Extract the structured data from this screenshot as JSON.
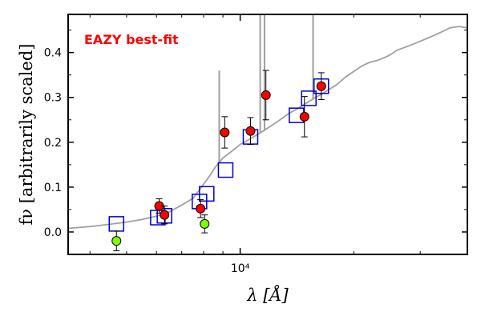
{
  "chart_data": {
    "type": "scatter",
    "title": "",
    "annotation": {
      "text": "EAZY best-fit",
      "color": "#ff0000",
      "position": "top-left"
    },
    "xlabel": "λ [Å]",
    "ylabel": "fν [arbitrarily scaled]",
    "xscale": "log",
    "xlim": [
      3500,
      40000
    ],
    "ylim": [
      -0.05,
      0.485
    ],
    "xticks": [
      {
        "value": 10000,
        "label": "10⁴"
      }
    ],
    "yticks": [
      {
        "value": 0.0,
        "label": "0.0"
      },
      {
        "value": 0.1,
        "label": "0.1"
      },
      {
        "value": 0.2,
        "label": "0.2"
      },
      {
        "value": 0.3,
        "label": "0.3"
      },
      {
        "value": 0.4,
        "label": "0.4"
      }
    ],
    "grid": false,
    "colors": {
      "model": "#a0a0a0",
      "observed": "#ff0000",
      "upper": "#7fff00",
      "model_box": "#0000cc"
    },
    "series": [
      {
        "kind": "line",
        "role": "model-spectrum",
        "x": [
          3500,
          4000,
          4500,
          5000,
          5500,
          6000,
          6500,
          7000,
          7500,
          7900,
          8300,
          8600,
          9000,
          9500,
          10000,
          10500,
          11000,
          11500,
          12000,
          12500,
          13000,
          13500,
          14000,
          14500,
          15000,
          15500,
          16000,
          16500,
          17000,
          18000,
          19000,
          20000,
          21000,
          22000,
          23000,
          24000,
          25000,
          26000,
          28000,
          30000,
          32000,
          34000,
          36000,
          38000,
          40000
        ],
        "y": [
          0.008,
          0.012,
          0.017,
          0.022,
          0.028,
          0.035,
          0.045,
          0.06,
          0.075,
          0.1,
          0.125,
          0.145,
          0.165,
          0.18,
          0.195,
          0.205,
          0.215,
          0.225,
          0.235,
          0.245,
          0.255,
          0.265,
          0.272,
          0.28,
          0.288,
          0.295,
          0.302,
          0.308,
          0.315,
          0.328,
          0.345,
          0.358,
          0.37,
          0.378,
          0.382,
          0.388,
          0.395,
          0.405,
          0.415,
          0.425,
          0.435,
          0.445,
          0.455,
          0.458,
          0.455
        ]
      },
      {
        "kind": "emission-lines",
        "role": "model-spectrum",
        "x": [
          8800,
          11300,
          11600,
          15600
        ],
        "ytop": [
          0.36,
          0.6,
          0.6,
          0.6
        ]
      },
      {
        "kind": "points",
        "role": "observed",
        "x": [
          6100,
          6300,
          7850,
          9100,
          10650,
          11700,
          14800,
          16400
        ],
        "y": [
          0.058,
          0.038,
          0.052,
          0.222,
          0.225,
          0.305,
          0.257,
          0.325
        ],
        "err": [
          0.016,
          0.02,
          0.02,
          0.035,
          0.03,
          0.055,
          0.045,
          0.03
        ]
      },
      {
        "kind": "points",
        "role": "upper-limit",
        "x": [
          4700,
          8050
        ],
        "y": [
          -0.02,
          0.018
        ],
        "err": [
          0.022,
          0.02
        ]
      },
      {
        "kind": "boxes",
        "role": "model-photometry",
        "x": [
          4700,
          6050,
          6300,
          7800,
          8150,
          9150,
          10650,
          14100,
          15200,
          16400
        ],
        "y": [
          0.018,
          0.032,
          0.036,
          0.068,
          0.085,
          0.138,
          0.212,
          0.26,
          0.298,
          0.325
        ]
      }
    ]
  }
}
